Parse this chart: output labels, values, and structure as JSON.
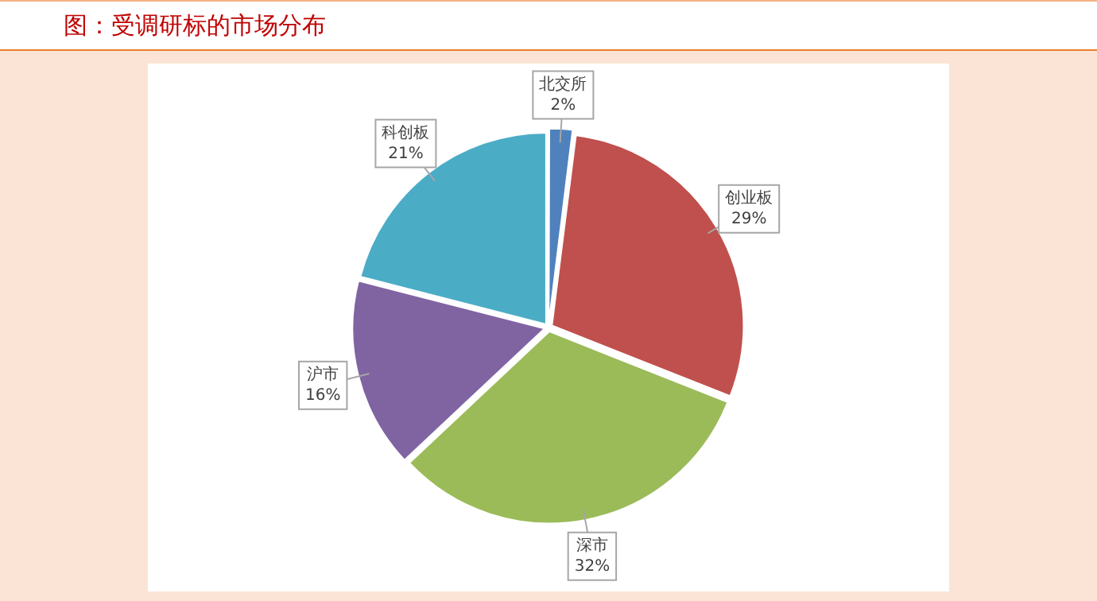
{
  "chart_data": {
    "type": "pie",
    "title": "图：受调研标的市场分布",
    "categories": [
      "北交所",
      "创业板",
      "深市",
      "沪市",
      "科创板"
    ],
    "values": [
      2,
      29,
      32,
      16,
      21
    ],
    "value_labels": [
      "2%",
      "29%",
      "32%",
      "16%",
      "21%"
    ],
    "colors": [
      "#4f81bd",
      "#c0504d",
      "#9bbb59",
      "#8064a2",
      "#4bacc6"
    ],
    "legend": false
  }
}
